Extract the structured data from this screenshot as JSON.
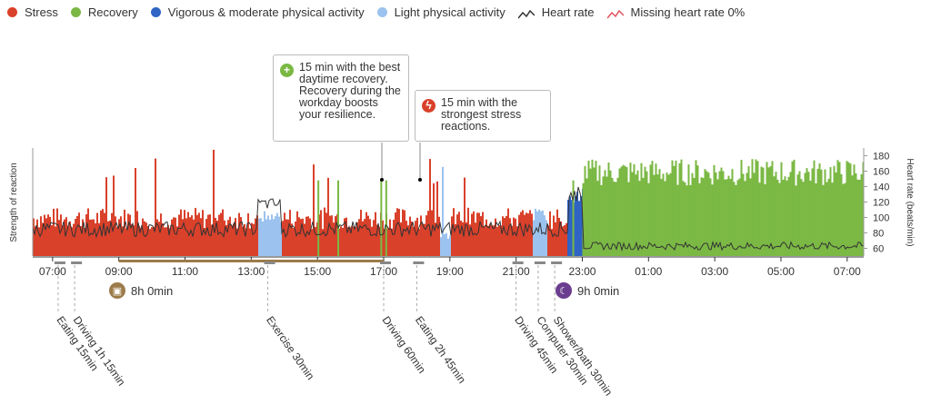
{
  "legend": [
    {
      "label": "Stress",
      "color": "#d9412b",
      "type": "dot"
    },
    {
      "label": "Recovery",
      "color": "#7ab843",
      "type": "dot"
    },
    {
      "label": "Vigorous & moderate physical activity",
      "color": "#2f64c5",
      "type": "dot"
    },
    {
      "label": "Light physical activity",
      "color": "#9cc3ef",
      "type": "dot"
    },
    {
      "label": "Heart rate",
      "color": "#333333",
      "type": "line"
    },
    {
      "label": "Missing heart rate 0%",
      "color": "#e0525e",
      "type": "line"
    }
  ],
  "tooltips": [
    {
      "text": "15 min with the best daytime recovery. Recovery during the workday boosts your resilience.",
      "icon_color": "#7ab843",
      "icon": "+"
    },
    {
      "text": "15 min with the strongest stress reactions.",
      "icon_color": "#d9412b",
      "icon": "ϟ"
    }
  ],
  "work": {
    "duration": "8h 0min",
    "color": "#9c7b4a"
  },
  "sleep": {
    "duration": "9h 0min",
    "color": "#6a3d8f"
  },
  "chart_data": {
    "type": "bar",
    "ylabel_left": "Strength of reaction",
    "ylabel_right": "Heart rate (beats/min)",
    "heart_rate_ticks": [
      60,
      80,
      100,
      120,
      140,
      160,
      180
    ],
    "time_ticks": [
      "07:00",
      "09:00",
      "11:00",
      "13:00",
      "15:00",
      "17:00",
      "19:00",
      "21:00",
      "23:00",
      "01:00",
      "03:00",
      "05:00",
      "07:00"
    ],
    "start_hour": 6.4,
    "end_hour": 31.5,
    "work_period": [
      "09:00",
      "17:00"
    ],
    "sleep_period": [
      "22:30",
      "07:30"
    ],
    "segments": [
      {
        "start": 6.4,
        "end": 9.0,
        "type": "stress",
        "level": 0.35
      },
      {
        "start": 13.2,
        "end": 13.9,
        "type": "light",
        "level": 0.38
      },
      {
        "start": 16.85,
        "end": 17.1,
        "type": "recovery",
        "level": 0.7
      },
      {
        "start": 18.7,
        "end": 19.0,
        "type": "light",
        "level": 0.2
      },
      {
        "start": 21.5,
        "end": 21.9,
        "type": "light",
        "level": 0.4
      },
      {
        "start": 22.5,
        "end": 23.0,
        "type": "vigorous",
        "level": 0.6
      },
      {
        "start": 23.0,
        "end": 31.5,
        "type": "recovery",
        "level": 0.78
      }
    ],
    "events": [
      {
        "label": "Eating 15min",
        "time": "07:10"
      },
      {
        "label": "Driving 1h 15min",
        "time": "07:40"
      },
      {
        "label": "Exercise 30min",
        "time": "13:30"
      },
      {
        "label": "Driving 60min",
        "time": "17:00"
      },
      {
        "label": "Eating 2h 45min",
        "time": "18:00"
      },
      {
        "label": "Driving 45min",
        "time": "21:00"
      },
      {
        "label": "Computer 30min",
        "time": "21:40"
      },
      {
        "label": "Shower/bath 30min",
        "time": "22:10"
      }
    ]
  }
}
